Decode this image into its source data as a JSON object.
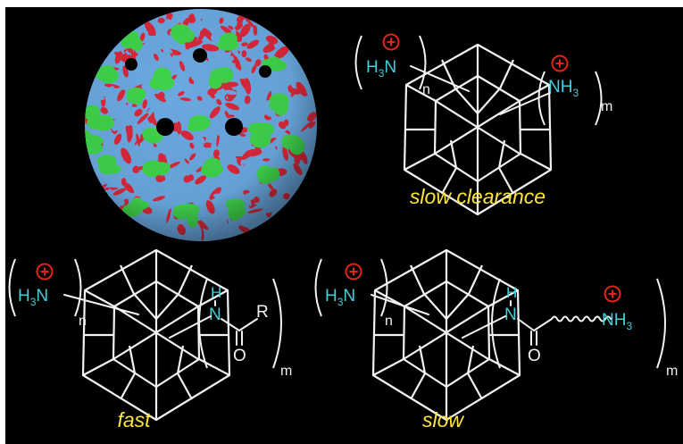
{
  "molecules": {
    "top": {
      "left_group": {
        "atom": "N",
        "h": "H",
        "sub": "3",
        "charge": "+",
        "repeat": "n"
      },
      "right_group": {
        "atom": "NH",
        "sub": "3",
        "charge": "+",
        "repeat": "m"
      },
      "caption": "slow clearance"
    },
    "bottom_left": {
      "left_group": {
        "atom": "N",
        "h": "H",
        "sub": "3",
        "charge": "+",
        "repeat": "n"
      },
      "amide": {
        "h": "H",
        "n": "N",
        "r": "R",
        "o": "O",
        "repeat": "m"
      },
      "caption": "fast"
    },
    "bottom_right": {
      "left_group": {
        "atom": "N",
        "h": "H",
        "sub": "3",
        "charge": "+",
        "repeat": "n"
      },
      "amide": {
        "h": "H",
        "n": "N",
        "o": "O",
        "terminal_atom": "NH",
        "terminal_sub": "3",
        "charge": "+",
        "repeat": "m"
      },
      "caption": "slow"
    }
  },
  "colors": {
    "background": "#000000",
    "nitrogen_label": "#3fd2dc",
    "caption": "#ffe43a",
    "charge": "#e2231a",
    "virus_green": "#3fd24a",
    "virus_red": "#d8283a",
    "virus_blue": "#6aa8e0"
  }
}
